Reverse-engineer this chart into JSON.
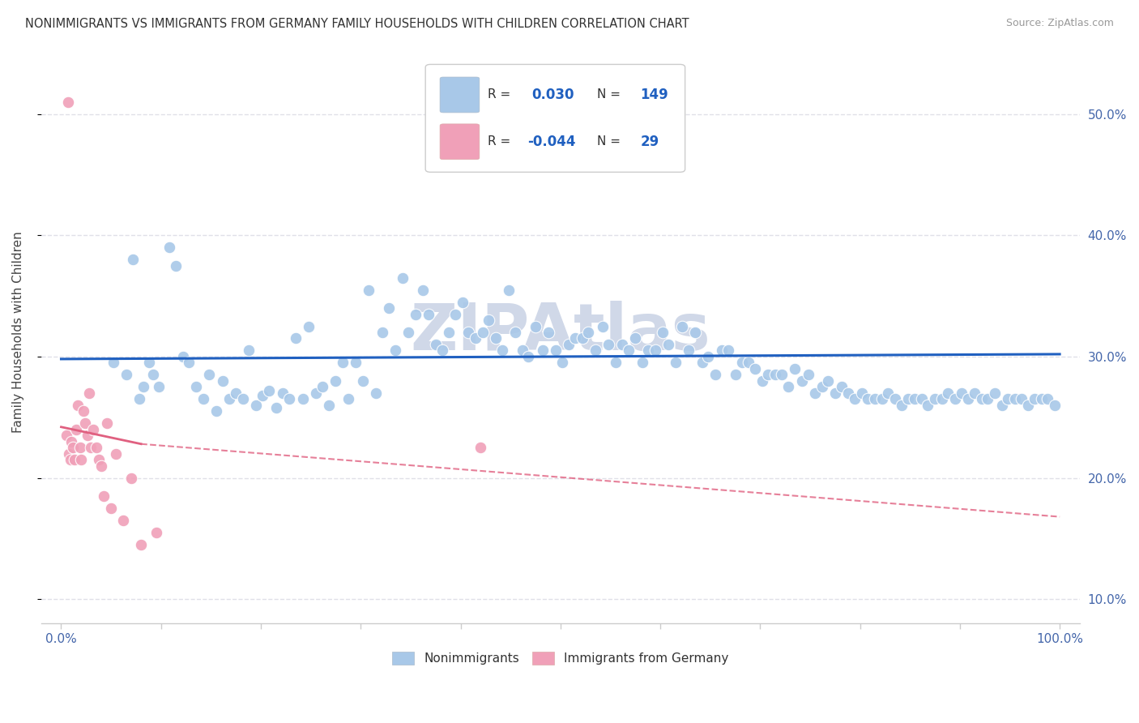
{
  "title": "NONIMMIGRANTS VS IMMIGRANTS FROM GERMANY FAMILY HOUSEHOLDS WITH CHILDREN CORRELATION CHART",
  "source": "Source: ZipAtlas.com",
  "ylabel": "Family Households with Children",
  "background_color": "#ffffff",
  "grid_color": "#e0e0e8",
  "blue_scatter_color": "#a8c8e8",
  "blue_line_color": "#2060c0",
  "pink_scatter_color": "#f0a0b8",
  "pink_line_color": "#e06080",
  "legend_r_color": "#2060c0",
  "legend_r_pink_color": "#e06080",
  "watermark": "ZIPAtlas",
  "watermark_color": "#d0d8e8",
  "nonimmigrants_x": [
    0.052,
    0.065,
    0.072,
    0.078,
    0.082,
    0.088,
    0.092,
    0.098,
    0.108,
    0.115,
    0.122,
    0.128,
    0.135,
    0.142,
    0.148,
    0.155,
    0.162,
    0.168,
    0.175,
    0.182,
    0.188,
    0.195,
    0.202,
    0.208,
    0.215,
    0.222,
    0.228,
    0.235,
    0.242,
    0.248,
    0.255,
    0.262,
    0.268,
    0.275,
    0.282,
    0.288,
    0.295,
    0.302,
    0.308,
    0.315,
    0.322,
    0.328,
    0.335,
    0.342,
    0.348,
    0.355,
    0.362,
    0.368,
    0.375,
    0.382,
    0.388,
    0.395,
    0.402,
    0.408,
    0.415,
    0.422,
    0.428,
    0.435,
    0.442,
    0.448,
    0.455,
    0.462,
    0.468,
    0.475,
    0.482,
    0.488,
    0.495,
    0.502,
    0.508,
    0.515,
    0.522,
    0.528,
    0.535,
    0.542,
    0.548,
    0.555,
    0.562,
    0.568,
    0.575,
    0.582,
    0.588,
    0.595,
    0.602,
    0.608,
    0.615,
    0.622,
    0.628,
    0.635,
    0.642,
    0.648,
    0.655,
    0.662,
    0.668,
    0.675,
    0.682,
    0.688,
    0.695,
    0.702,
    0.708,
    0.715,
    0.722,
    0.728,
    0.735,
    0.742,
    0.748,
    0.755,
    0.762,
    0.768,
    0.775,
    0.782,
    0.788,
    0.795,
    0.802,
    0.808,
    0.815,
    0.822,
    0.828,
    0.835,
    0.842,
    0.848,
    0.855,
    0.862,
    0.868,
    0.875,
    0.882,
    0.888,
    0.895,
    0.902,
    0.908,
    0.915,
    0.922,
    0.928,
    0.935,
    0.942,
    0.948,
    0.955,
    0.962,
    0.968,
    0.975,
    0.982,
    0.988,
    0.995
  ],
  "nonimmigrants_y": [
    0.295,
    0.285,
    0.38,
    0.265,
    0.275,
    0.295,
    0.285,
    0.275,
    0.39,
    0.375,
    0.3,
    0.295,
    0.275,
    0.265,
    0.285,
    0.255,
    0.28,
    0.265,
    0.27,
    0.265,
    0.305,
    0.26,
    0.268,
    0.272,
    0.258,
    0.27,
    0.265,
    0.315,
    0.265,
    0.325,
    0.27,
    0.275,
    0.26,
    0.28,
    0.295,
    0.265,
    0.295,
    0.28,
    0.355,
    0.27,
    0.32,
    0.34,
    0.305,
    0.365,
    0.32,
    0.335,
    0.355,
    0.335,
    0.31,
    0.305,
    0.32,
    0.335,
    0.345,
    0.32,
    0.315,
    0.32,
    0.33,
    0.315,
    0.305,
    0.355,
    0.32,
    0.305,
    0.3,
    0.325,
    0.305,
    0.32,
    0.305,
    0.295,
    0.31,
    0.315,
    0.315,
    0.32,
    0.305,
    0.325,
    0.31,
    0.295,
    0.31,
    0.305,
    0.315,
    0.295,
    0.305,
    0.305,
    0.32,
    0.31,
    0.295,
    0.325,
    0.305,
    0.32,
    0.295,
    0.3,
    0.285,
    0.305,
    0.305,
    0.285,
    0.295,
    0.295,
    0.29,
    0.28,
    0.285,
    0.285,
    0.285,
    0.275,
    0.29,
    0.28,
    0.285,
    0.27,
    0.275,
    0.28,
    0.27,
    0.275,
    0.27,
    0.265,
    0.27,
    0.265,
    0.265,
    0.265,
    0.27,
    0.265,
    0.26,
    0.265,
    0.265,
    0.265,
    0.26,
    0.265,
    0.265,
    0.27,
    0.265,
    0.27,
    0.265,
    0.27,
    0.265,
    0.265,
    0.27,
    0.26,
    0.265,
    0.265,
    0.265,
    0.26,
    0.265,
    0.265,
    0.265,
    0.26
  ],
  "immigrants_x": [
    0.005,
    0.007,
    0.008,
    0.009,
    0.01,
    0.012,
    0.013,
    0.015,
    0.017,
    0.019,
    0.02,
    0.022,
    0.024,
    0.026,
    0.028,
    0.03,
    0.032,
    0.035,
    0.038,
    0.04,
    0.043,
    0.046,
    0.05,
    0.055,
    0.062,
    0.07,
    0.08,
    0.095,
    0.42
  ],
  "immigrants_y": [
    0.235,
    0.51,
    0.22,
    0.215,
    0.23,
    0.225,
    0.215,
    0.24,
    0.26,
    0.225,
    0.215,
    0.255,
    0.245,
    0.235,
    0.27,
    0.225,
    0.24,
    0.225,
    0.215,
    0.21,
    0.185,
    0.245,
    0.175,
    0.22,
    0.165,
    0.2,
    0.145,
    0.155,
    0.225
  ],
  "ylim": [
    0.08,
    0.56
  ],
  "xlim": [
    -0.02,
    1.02
  ],
  "yticks": [
    0.1,
    0.2,
    0.3,
    0.4,
    0.5
  ],
  "ytick_labels": [
    "10.0%",
    "20.0%",
    "30.0%",
    "40.0%",
    "50.0%"
  ],
  "xticks": [
    0.0,
    0.1,
    0.2,
    0.3,
    0.4,
    0.5,
    0.6,
    0.7,
    0.8,
    0.9,
    1.0
  ],
  "xtick_labels_show": [
    "0.0%",
    "100.0%"
  ],
  "blue_trend": [
    0.0,
    1.0,
    0.298,
    0.302
  ],
  "pink_trend_solid": [
    0.0,
    0.08,
    0.242,
    0.228
  ],
  "pink_trend_dashed": [
    0.08,
    1.0,
    0.228,
    0.168
  ]
}
